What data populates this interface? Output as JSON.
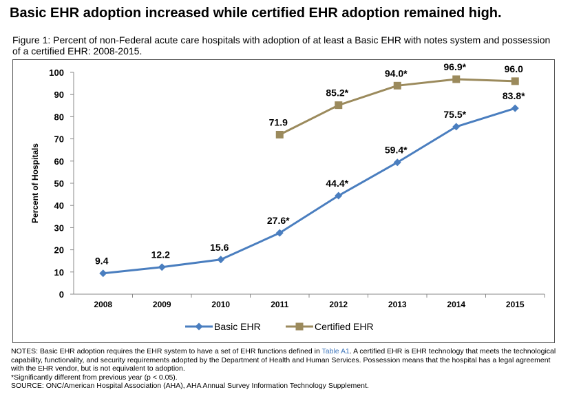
{
  "headline": "Basic EHR adoption increased while certified EHR adoption remained high.",
  "figure_caption": "Figure 1: Percent of non-Federal acute care hospitals with adoption of at least a Basic EHR with notes system and possession of a certified EHR: 2008-2015.",
  "chart_data": {
    "type": "line",
    "categories": [
      "2008",
      "2009",
      "2010",
      "2011",
      "2012",
      "2013",
      "2014",
      "2015"
    ],
    "ylabel": "Percent of Hospitals",
    "xlabel": "",
    "ylim": [
      0,
      100
    ],
    "yticks": [
      0,
      10,
      20,
      30,
      40,
      50,
      60,
      70,
      80,
      90,
      100
    ],
    "grid": false,
    "legend_position": "bottom",
    "series": [
      {
        "name": "Basic EHR",
        "color": "#4a7ebf",
        "marker": "diamond",
        "values": [
          9.4,
          12.2,
          15.6,
          27.6,
          44.4,
          59.4,
          75.5,
          83.8
        ],
        "labels": [
          "9.4",
          "12.2",
          "15.6",
          "27.6*",
          "44.4*",
          "59.4*",
          "75.5*",
          "83.8*"
        ]
      },
      {
        "name": "Certified EHR",
        "color": "#9b8a5c",
        "marker": "square",
        "values": [
          null,
          null,
          null,
          71.9,
          85.2,
          94.0,
          96.9,
          96.0
        ],
        "labels": [
          null,
          null,
          null,
          "71.9",
          "85.2*",
          "94.0*",
          "96.9*",
          "96.0"
        ]
      }
    ]
  },
  "notes": {
    "line1_before": "NOTES: Basic EHR adoption requires the EHR system to have a set of EHR functions defined in ",
    "line1_link": "Table A1",
    "line1_after": ". A certified EHR is EHR technology that meets the technological capability, functionality, and security requirements adopted by the Department of Health and Human Services. Possession means that the hospital has a legal agreement with the EHR vendor, but is not equivalent to adoption.",
    "significance": "*Significantly different from previous year (p < 0.05).",
    "source": "SOURCE: ONC/American Hospital Association (AHA), AHA Annual Survey Information Technology Supplement."
  }
}
